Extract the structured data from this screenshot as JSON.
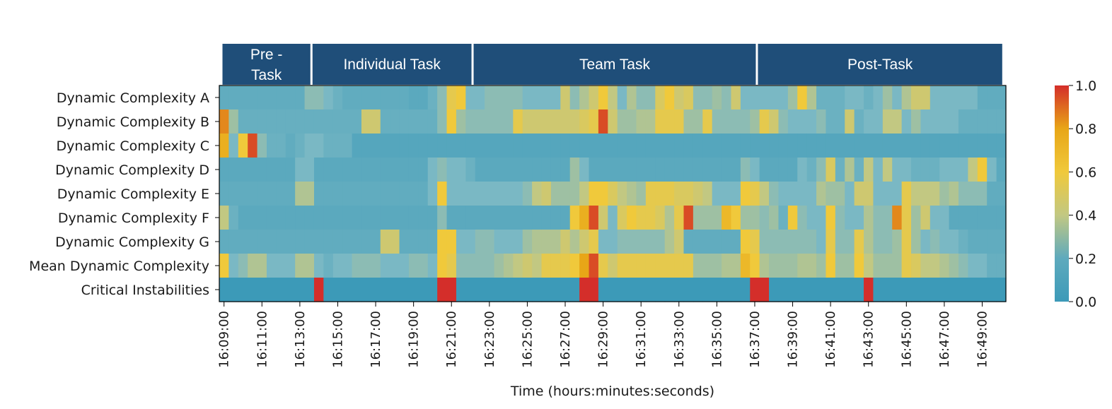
{
  "chart_data": {
    "type": "heatmap",
    "title": "",
    "xlabel": "Time (hours:minutes:seconds)",
    "ylabel": "",
    "phases": [
      {
        "label_lines": [
          "Pre -",
          "Task"
        ],
        "start_min": 0,
        "end_min": 4.75
      },
      {
        "label_lines": [
          "Individual Task"
        ],
        "start_min": 4.75,
        "end_min": 13.25
      },
      {
        "label_lines": [
          "Team Task"
        ],
        "start_min": 13.25,
        "end_min": 28.25
      },
      {
        "label_lines": [
          "Post-Task"
        ],
        "start_min": 28.25,
        "end_min": 41.25
      }
    ],
    "rows": [
      "Dynamic Complexity A",
      "Dynamic Complexity B",
      "Dynamic Complexity C",
      "Dynamic Complexity D",
      "Dynamic Complexity E",
      "Dynamic Complexity F",
      "Dynamic Complexity G",
      "Mean Dynamic Complexity",
      "Critical Instabilities"
    ],
    "x_ticks": [
      "16:09:00",
      "16:11:00",
      "16:13:00",
      "16:15:00",
      "16:17:00",
      "16:19:00",
      "16:21:00",
      "16:23:00",
      "16:25:00",
      "16:27:00",
      "16:29:00",
      "16:31:00",
      "16:33:00",
      "16:35:00",
      "16:37:00",
      "16:39:00",
      "16:41:00",
      "16:43:00",
      "16:45:00",
      "16:47:00",
      "16:49:00"
    ],
    "x_start": "16:09:00",
    "bin_seconds": 30,
    "n_bins": 83,
    "colorbar": {
      "min": 0.0,
      "max": 1.0,
      "ticks": [
        "0.0",
        "0.2",
        "0.4",
        "0.6",
        "0.8",
        "1.0"
      ]
    },
    "colors": [
      "#3c9ab8",
      "#7ab8c4",
      "#c2c882",
      "#f0c93b",
      "#e8a617",
      "#d42e2a"
    ],
    "phase_color": "#1f4e79",
    "values": {
      "Dynamic Complexity A": {
        "base": 0.12,
        "cells": {
          "9": 0.25,
          "10": 0.25,
          "11": 0.2,
          "12": 0.15,
          "14": 0.12,
          "20": 0.1,
          "21": 0.1,
          "22": 0.15,
          "23": 0.25,
          "24": 0.55,
          "25": 0.6,
          "26": 0.2,
          "27": 0.2,
          "28": 0.25,
          "29": 0.25,
          "30": 0.25,
          "31": 0.25,
          "32": 0.2,
          "33": 0.2,
          "34": 0.2,
          "35": 0.2,
          "36": 0.45,
          "37": 0.25,
          "38": 0.35,
          "39": 0.45,
          "40": 0.6,
          "41": 0.4,
          "42": 0.2,
          "43": 0.35,
          "44": 0.25,
          "45": 0.25,
          "46": 0.5,
          "47": 0.6,
          "48": 0.45,
          "49": 0.5,
          "50": 0.25,
          "51": 0.25,
          "52": 0.3,
          "53": 0.25,
          "54": 0.45,
          "55": 0.2,
          "56": 0.2,
          "57": 0.2,
          "58": 0.2,
          "59": 0.2,
          "60": 0.3,
          "61": 0.6,
          "62": 0.35,
          "63": 0.15,
          "64": 0.15,
          "65": 0.15,
          "66": 0.2,
          "67": 0.2,
          "68": 0.15,
          "69": 0.2,
          "70": 0.3,
          "71": 0.2,
          "72": 0.35,
          "73": 0.45,
          "74": 0.45,
          "75": 0.2,
          "76": 0.2,
          "77": 0.2,
          "78": 0.2,
          "79": 0.2
        }
      },
      "Dynamic Complexity B": {
        "base": 0.14,
        "cells": {
          "0": 0.85,
          "1": 0.3,
          "15": 0.45,
          "16": 0.45,
          "23": 0.25,
          "24": 0.6,
          "25": 0.3,
          "26": 0.25,
          "27": 0.25,
          "28": 0.25,
          "29": 0.25,
          "30": 0.25,
          "31": 0.55,
          "32": 0.45,
          "33": 0.45,
          "34": 0.45,
          "35": 0.45,
          "36": 0.45,
          "37": 0.45,
          "38": 0.5,
          "39": 0.55,
          "40": 0.95,
          "41": 0.45,
          "42": 0.3,
          "43": 0.3,
          "44": 0.35,
          "45": 0.35,
          "46": 0.55,
          "47": 0.55,
          "48": 0.55,
          "49": 0.3,
          "50": 0.3,
          "51": 0.55,
          "52": 0.25,
          "53": 0.25,
          "54": 0.25,
          "55": 0.25,
          "56": 0.3,
          "57": 0.55,
          "58": 0.45,
          "59": 0.25,
          "60": 0.2,
          "61": 0.2,
          "62": 0.2,
          "63": 0.25,
          "64": 0.15,
          "65": 0.15,
          "66": 0.45,
          "67": 0.15,
          "68": 0.2,
          "69": 0.2,
          "70": 0.4,
          "71": 0.4,
          "72": 0.2,
          "73": 0.3,
          "74": 0.2,
          "75": 0.2,
          "76": 0.2,
          "77": 0.2
        }
      },
      "Dynamic Complexity C": {
        "base": 0.08,
        "cells": {
          "0": 0.75,
          "1": 0.2,
          "2": 0.6,
          "3": 0.95,
          "4": 0.25,
          "5": 0.15,
          "6": 0.15,
          "7": 0.12,
          "8": 0.15,
          "9": 0.2,
          "10": 0.2,
          "11": 0.15,
          "12": 0.15,
          "13": 0.15
        }
      },
      "Dynamic Complexity D": {
        "base": 0.1,
        "cells": {
          "8": 0.2,
          "9": 0.2,
          "22": 0.2,
          "23": 0.25,
          "24": 0.2,
          "25": 0.2,
          "26": 0.15,
          "37": 0.3,
          "38": 0.2,
          "55": 0.25,
          "56": 0.2,
          "61": 0.2,
          "62": 0.15,
          "63": 0.25,
          "64": 0.5,
          "65": 0.15,
          "66": 0.35,
          "67": 0.15,
          "68": 0.4,
          "69": 0.2,
          "70": 0.4,
          "71": 0.2,
          "72": 0.2,
          "73": 0.15,
          "74": 0.15,
          "75": 0.15,
          "76": 0.2,
          "77": 0.2,
          "78": 0.2,
          "79": 0.4,
          "80": 0.6,
          "81": 0.2
        }
      },
      "Dynamic Complexity E": {
        "base": 0.12,
        "cells": {
          "8": 0.35,
          "9": 0.35,
          "22": 0.2,
          "23": 0.6,
          "24": 0.2,
          "25": 0.2,
          "26": 0.2,
          "27": 0.2,
          "28": 0.2,
          "29": 0.2,
          "30": 0.2,
          "31": 0.2,
          "32": 0.25,
          "33": 0.4,
          "34": 0.45,
          "35": 0.3,
          "36": 0.3,
          "37": 0.3,
          "38": 0.4,
          "39": 0.6,
          "40": 0.6,
          "41": 0.5,
          "42": 0.4,
          "43": 0.35,
          "44": 0.3,
          "45": 0.55,
          "46": 0.55,
          "47": 0.55,
          "48": 0.5,
          "49": 0.5,
          "50": 0.45,
          "51": 0.4,
          "52": 0.2,
          "53": 0.2,
          "54": 0.2,
          "55": 0.6,
          "56": 0.55,
          "57": 0.4,
          "58": 0.25,
          "59": 0.2,
          "60": 0.2,
          "61": 0.2,
          "62": 0.2,
          "63": 0.35,
          "64": 0.3,
          "65": 0.3,
          "66": 0.2,
          "67": 0.45,
          "68": 0.45,
          "69": 0.2,
          "70": 0.2,
          "71": 0.2,
          "72": 0.55,
          "73": 0.4,
          "74": 0.4,
          "75": 0.4,
          "76": 0.3,
          "77": 0.35,
          "78": 0.25,
          "79": 0.25,
          "80": 0.25
        }
      },
      "Dynamic Complexity F": {
        "base": 0.1,
        "cells": {
          "0": 0.4,
          "1": 0.15,
          "23": 0.25,
          "37": 0.6,
          "38": 0.75,
          "39": 0.95,
          "40": 0.45,
          "41": 0.2,
          "42": 0.5,
          "43": 0.6,
          "44": 0.55,
          "45": 0.55,
          "46": 0.5,
          "47": 0.35,
          "48": 0.55,
          "49": 0.95,
          "50": 0.3,
          "51": 0.3,
          "52": 0.3,
          "53": 0.7,
          "54": 0.6,
          "55": 0.3,
          "56": 0.3,
          "57": 0.25,
          "58": 0.3,
          "59": 0.15,
          "60": 0.6,
          "61": 0.25,
          "62": 0.2,
          "63": 0.2,
          "64": 0.6,
          "65": 0.25,
          "66": 0.2,
          "67": 0.2,
          "68": 0.35,
          "69": 0.25,
          "70": 0.25,
          "71": 0.85,
          "72": 0.55,
          "73": 0.3,
          "74": 0.45,
          "75": 0.2,
          "76": 0.2
        }
      },
      "Dynamic Complexity G": {
        "base": 0.12,
        "cells": {
          "17": 0.45,
          "18": 0.45,
          "23": 0.6,
          "24": 0.6,
          "25": 0.2,
          "26": 0.2,
          "27": 0.25,
          "28": 0.25,
          "29": 0.2,
          "30": 0.2,
          "31": 0.2,
          "32": 0.3,
          "33": 0.35,
          "34": 0.35,
          "35": 0.35,
          "36": 0.45,
          "37": 0.35,
          "38": 0.45,
          "39": 0.55,
          "40": 0.2,
          "41": 0.2,
          "42": 0.25,
          "43": 0.25,
          "44": 0.25,
          "45": 0.25,
          "46": 0.25,
          "47": 0.35,
          "48": 0.45,
          "55": 0.6,
          "56": 0.55,
          "57": 0.25,
          "58": 0.25,
          "59": 0.25,
          "60": 0.25,
          "61": 0.25,
          "62": 0.25,
          "63": 0.2,
          "64": 0.55,
          "65": 0.25,
          "66": 0.25,
          "67": 0.55,
          "68": 0.35,
          "69": 0.25,
          "70": 0.25,
          "71": 0.3,
          "72": 0.55,
          "73": 0.3,
          "74": 0.2,
          "75": 0.25,
          "76": 0.2,
          "77": 0.2,
          "78": 0.15
        }
      },
      "Mean Dynamic Complexity": {
        "base": 0.14,
        "cells": {
          "0": 0.6,
          "1": 0.2,
          "2": 0.25,
          "3": 0.35,
          "4": 0.35,
          "5": 0.2,
          "6": 0.2,
          "7": 0.2,
          "8": 0.35,
          "9": 0.35,
          "10": 0.2,
          "11": 0.15,
          "12": 0.2,
          "13": 0.2,
          "14": 0.25,
          "15": 0.25,
          "16": 0.25,
          "17": 0.2,
          "18": 0.2,
          "19": 0.2,
          "20": 0.25,
          "21": 0.25,
          "22": 0.2,
          "23": 0.6,
          "24": 0.55,
          "25": 0.25,
          "26": 0.25,
          "27": 0.25,
          "28": 0.25,
          "29": 0.3,
          "30": 0.35,
          "31": 0.4,
          "32": 0.45,
          "33": 0.4,
          "34": 0.55,
          "35": 0.55,
          "36": 0.55,
          "37": 0.6,
          "38": 0.8,
          "39": 0.95,
          "40": 0.55,
          "41": 0.45,
          "42": 0.55,
          "43": 0.55,
          "44": 0.55,
          "45": 0.55,
          "46": 0.55,
          "47": 0.55,
          "48": 0.55,
          "49": 0.55,
          "50": 0.3,
          "51": 0.3,
          "52": 0.3,
          "53": 0.35,
          "54": 0.35,
          "55": 0.7,
          "56": 0.6,
          "57": 0.35,
          "58": 0.3,
          "59": 0.3,
          "60": 0.3,
          "61": 0.35,
          "62": 0.35,
          "63": 0.3,
          "64": 0.6,
          "65": 0.3,
          "66": 0.3,
          "67": 0.6,
          "68": 0.4,
          "69": 0.3,
          "70": 0.3,
          "71": 0.3,
          "72": 0.55,
          "73": 0.5,
          "74": 0.4,
          "75": 0.4,
          "76": 0.35,
          "77": 0.3,
          "78": 0.25,
          "79": 0.2,
          "80": 0.2
        }
      },
      "Critical Instabilities": {
        "base": 0.0,
        "cells": {
          "10": 1.0,
          "23": 1.0,
          "24": 1.0,
          "38": 1.0,
          "39": 1.0,
          "56": 1.0,
          "57": 1.0,
          "68": 1.0
        }
      }
    }
  }
}
